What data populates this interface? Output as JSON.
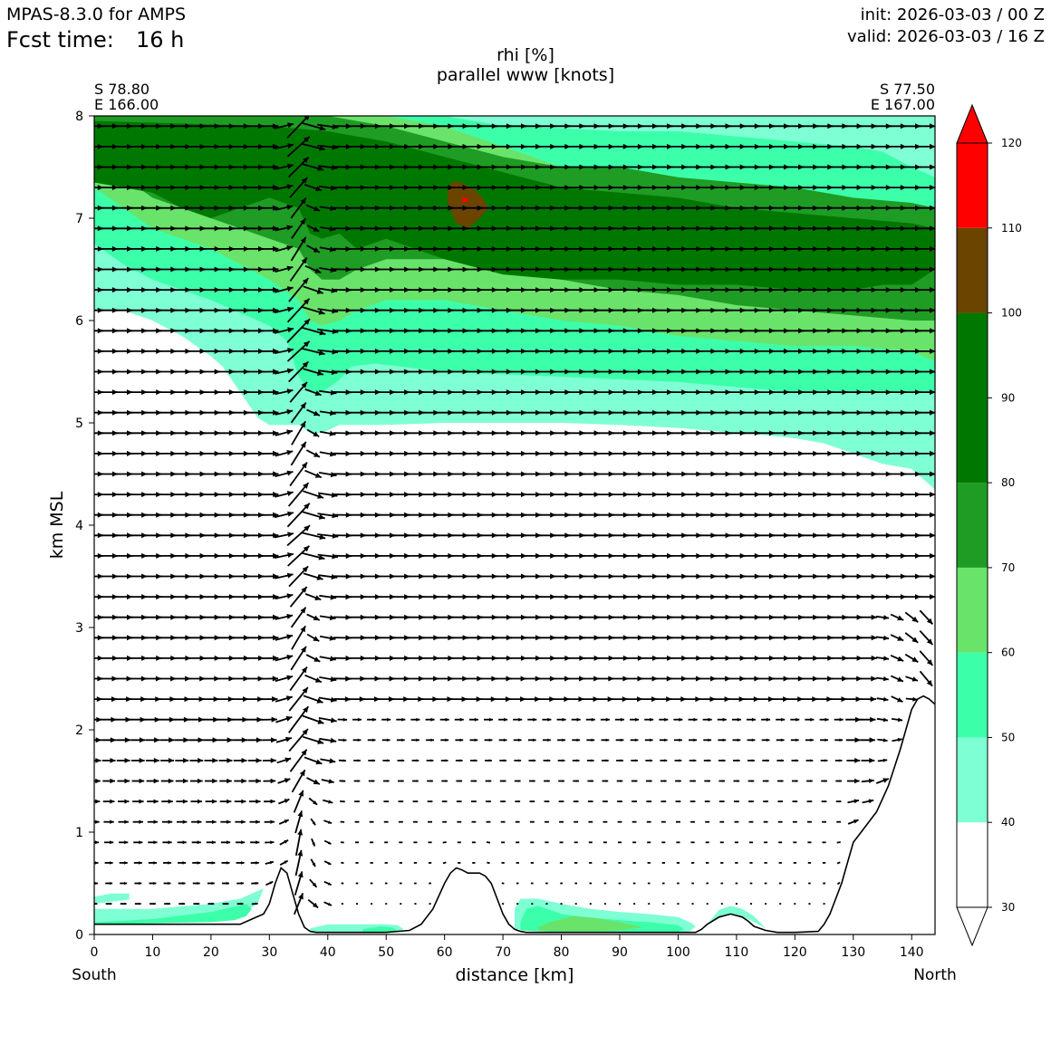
{
  "header": {
    "model": "MPAS-8.3.0 for AMPS",
    "fcst_label": "Fcst time:",
    "fcst_value": "16 h",
    "init": "init: 2026-03-03 / 00 Z",
    "valid": "valid: 2026-03-03 / 16 Z"
  },
  "chart_data": {
    "type": "cross-section",
    "title_line1": "rhi [%]",
    "title_line2": "parallel www [knots]",
    "xlabel": "distance [km]",
    "ylabel": "km MSL",
    "xlim": [
      0,
      144
    ],
    "ylim": [
      0,
      8
    ],
    "xticks": [
      0,
      10,
      20,
      30,
      40,
      50,
      60,
      70,
      80,
      90,
      100,
      110,
      120,
      130,
      140
    ],
    "yticks": [
      0,
      1,
      2,
      3,
      4,
      5,
      6,
      7,
      8
    ],
    "start_point": {
      "lat": "S 78.80",
      "lon": "E 166.00"
    },
    "end_point": {
      "lat": "S 77.50",
      "lon": "E 167.00"
    },
    "left_label": "South",
    "right_label": "North",
    "colorbar": {
      "ticks": [
        30,
        40,
        50,
        60,
        70,
        80,
        90,
        100,
        110,
        120
      ],
      "bins": [
        {
          "from": 30,
          "to": 40,
          "color": "#ffffff"
        },
        {
          "from": 40,
          "to": 50,
          "color": "#7fffd4"
        },
        {
          "from": 50,
          "to": 60,
          "color": "#3cffaa"
        },
        {
          "from": 60,
          "to": 70,
          "color": "#6ae36a"
        },
        {
          "from": 70,
          "to": 80,
          "color": "#1f9c24"
        },
        {
          "from": 80,
          "to": 100,
          "color": "#007800"
        },
        {
          "from": 100,
          "to": 110,
          "color": "#6b4400"
        },
        {
          "from": 110,
          "to": 120,
          "color": "#ff0000"
        }
      ]
    },
    "terrain": {
      "x": [
        0,
        10,
        20,
        25,
        27,
        29,
        30,
        31,
        32,
        33,
        34,
        35,
        36,
        37,
        38,
        40,
        45,
        50,
        54,
        56,
        58,
        60,
        61,
        62,
        63,
        64,
        66,
        67,
        68,
        69,
        70,
        71,
        72,
        73,
        74,
        80,
        90,
        100,
        103,
        104,
        105,
        107,
        109,
        111,
        112,
        113,
        115,
        117,
        120,
        124,
        125,
        126,
        128,
        130,
        132,
        134,
        136,
        138,
        139,
        140,
        141,
        142,
        143,
        144
      ],
      "y": [
        0.1,
        0.1,
        0.1,
        0.1,
        0.15,
        0.2,
        0.3,
        0.5,
        0.65,
        0.6,
        0.4,
        0.2,
        0.07,
        0.03,
        0.02,
        0.02,
        0.02,
        0.02,
        0.04,
        0.1,
        0.25,
        0.5,
        0.6,
        0.65,
        0.63,
        0.6,
        0.6,
        0.57,
        0.5,
        0.35,
        0.2,
        0.1,
        0.05,
        0.03,
        0.02,
        0.02,
        0.02,
        0.02,
        0.02,
        0.05,
        0.1,
        0.17,
        0.2,
        0.17,
        0.13,
        0.08,
        0.04,
        0.02,
        0.02,
        0.03,
        0.1,
        0.2,
        0.5,
        0.9,
        1.05,
        1.2,
        1.45,
        1.8,
        2.0,
        2.2,
        2.3,
        2.33,
        2.3,
        2.25
      ]
    },
    "rhi_layers": [
      {
        "level": "40-50",
        "color": "#7fffd4",
        "upper": {
          "x": [
            0,
            144
          ],
          "y": [
            8,
            8
          ]
        },
        "lower": {
          "x": [
            0,
            2,
            5,
            10,
            15,
            20,
            22,
            25,
            28,
            30,
            35,
            37,
            39,
            42,
            45,
            50,
            60,
            70,
            80,
            90,
            100,
            110,
            115,
            120,
            125,
            130,
            135,
            140,
            144
          ],
          "y": [
            6.1,
            6.1,
            6.1,
            6.0,
            5.85,
            5.65,
            5.55,
            5.3,
            5.05,
            4.98,
            4.98,
            4.9,
            4.9,
            4.98,
            4.98,
            4.98,
            5.0,
            5.0,
            5.0,
            4.98,
            4.95,
            4.9,
            4.88,
            4.85,
            4.8,
            4.7,
            4.6,
            4.55,
            4.35
          ]
        }
      },
      {
        "level": "50-60",
        "color": "#3cffaa",
        "upper": {
          "x": [
            0,
            50,
            60,
            70,
            80,
            90,
            100,
            110,
            120,
            130,
            135,
            140,
            144
          ],
          "y": [
            8,
            8,
            8,
            7.9,
            7.88,
            7.85,
            7.85,
            7.8,
            7.75,
            7.7,
            7.65,
            7.5,
            7.4
          ]
        },
        "lower": {
          "x": [
            0,
            5,
            10,
            20,
            30,
            33,
            35,
            37,
            39,
            42,
            44,
            48,
            60,
            80,
            100,
            120,
            140,
            144
          ],
          "y": [
            6.75,
            6.55,
            6.4,
            6.2,
            5.95,
            5.8,
            5.45,
            5.3,
            5.3,
            5.42,
            5.55,
            5.58,
            5.5,
            5.45,
            5.4,
            5.3,
            5.3,
            5.3
          ]
        }
      },
      {
        "level": "60-70",
        "color": "#6ae36a",
        "upper": {
          "x": [
            0,
            30,
            40,
            50,
            60,
            70,
            80,
            90,
            100,
            110,
            120,
            130,
            140,
            144
          ],
          "y": [
            8,
            8,
            8,
            8,
            7.9,
            7.7,
            7.5,
            7.4,
            7.35,
            7.3,
            7.25,
            7.2,
            7.1,
            7.05
          ]
        },
        "lower": {
          "x": [
            0,
            5,
            10,
            20,
            30,
            35,
            37,
            39,
            42,
            45,
            50,
            60,
            70,
            80,
            90,
            100,
            110,
            120,
            130,
            140,
            144
          ],
          "y": [
            7.3,
            7.1,
            6.9,
            6.7,
            6.4,
            6.2,
            6.0,
            5.95,
            6.0,
            6.1,
            6.2,
            6.2,
            6.1,
            6.0,
            5.95,
            5.85,
            5.8,
            5.75,
            5.75,
            5.7,
            5.6
          ]
        }
      },
      {
        "level": "70-80",
        "color": "#1f9c24",
        "upper": {
          "x": [
            0,
            30,
            40,
            50,
            60,
            70,
            80,
            90,
            100,
            110,
            120,
            130,
            140,
            144
          ],
          "y": [
            8,
            8,
            8,
            7.9,
            7.75,
            7.6,
            7.5,
            7.5,
            7.4,
            7.35,
            7.3,
            7.2,
            7.15,
            7.1
          ]
        },
        "lower": {
          "x": [
            0,
            5,
            10,
            20,
            30,
            35,
            37,
            39,
            42,
            45,
            50,
            60,
            70,
            80,
            90,
            100,
            110,
            120,
            130,
            140,
            144
          ],
          "y": [
            7.6,
            7.4,
            7.2,
            7.0,
            6.8,
            6.7,
            6.5,
            6.4,
            6.4,
            6.5,
            6.6,
            6.6,
            6.5,
            6.4,
            6.3,
            6.25,
            6.15,
            6.1,
            6.05,
            6.0,
            6.0
          ]
        }
      },
      {
        "level": "80-100",
        "color": "#007800",
        "upper": {
          "x": [
            0,
            30,
            40,
            50,
            60,
            70,
            80,
            90,
            100,
            110,
            120,
            130,
            140,
            144
          ],
          "y": [
            7.95,
            7.9,
            7.85,
            7.75,
            7.6,
            7.45,
            7.3,
            7.25,
            7.2,
            7.1,
            7.05,
            7.0,
            6.95,
            6.9
          ]
        },
        "lower": {
          "x": [
            0,
            5,
            10,
            15,
            20,
            25,
            30,
            35,
            37,
            39,
            42,
            45,
            50,
            55,
            60,
            70,
            80,
            90,
            100,
            110,
            120,
            130,
            135,
            140,
            144
          ],
          "y": [
            7.35,
            7.3,
            7.25,
            7.1,
            7.0,
            7.1,
            7.2,
            7.1,
            6.85,
            6.8,
            6.85,
            6.7,
            6.8,
            6.7,
            6.6,
            6.45,
            6.4,
            6.4,
            6.35,
            6.35,
            6.3,
            6.3,
            6.35,
            6.35,
            6.5
          ]
        }
      }
    ],
    "rhi_patches": [
      {
        "level": "100-110",
        "color": "#6b4400",
        "x": [
          60.5,
          61.5,
          63,
          65,
          66.5,
          67.5,
          66,
          64,
          62,
          60.5
        ],
        "y": [
          7.3,
          7.36,
          7.35,
          7.28,
          7.2,
          7.1,
          7.0,
          6.9,
          6.95,
          7.15
        ]
      },
      {
        "level": "110-120",
        "color": "#ff0000",
        "x": [
          63,
          64,
          64,
          63
        ],
        "y": [
          7.2,
          7.2,
          7.16,
          7.16
        ]
      },
      {
        "level": "40-50",
        "color": "#7fffd4",
        "x": [
          0,
          5,
          10,
          20,
          25,
          28,
          29,
          27,
          25,
          20,
          10,
          5,
          0
        ],
        "y": [
          0.1,
          0.1,
          0.12,
          0.15,
          0.2,
          0.3,
          0.45,
          0.4,
          0.35,
          0.3,
          0.25,
          0.25,
          0.25
        ]
      },
      {
        "level": "50-60",
        "color": "#3cffaa",
        "x": [
          0,
          10,
          20,
          24,
          26,
          27,
          26,
          24,
          20,
          10,
          0
        ],
        "y": [
          0.1,
          0.11,
          0.12,
          0.14,
          0.18,
          0.25,
          0.3,
          0.27,
          0.22,
          0.15,
          0.12
        ]
      },
      {
        "level": "40-50",
        "color": "#7fffd4",
        "x": [
          37,
          45,
          50,
          52,
          53,
          52,
          50,
          45,
          40,
          37
        ],
        "y": [
          0.02,
          0.02,
          0.03,
          0.03,
          0.05,
          0.09,
          0.1,
          0.1,
          0.1,
          0.06
        ]
      },
      {
        "level": "50-60",
        "color": "#3cffaa",
        "x": [
          46,
          50,
          52,
          51,
          49,
          46
        ],
        "y": [
          0.02,
          0.02,
          0.04,
          0.07,
          0.08,
          0.05
        ]
      },
      {
        "level": "40-50",
        "color": "#7fffd4",
        "x": [
          72,
          80,
          90,
          100,
          102,
          103,
          102,
          100,
          95,
          90,
          85,
          80,
          76,
          73,
          72
        ],
        "y": [
          0.05,
          0.02,
          0.02,
          0.02,
          0.03,
          0.08,
          0.12,
          0.17,
          0.2,
          0.22,
          0.25,
          0.3,
          0.35,
          0.35,
          0.25
        ]
      },
      {
        "level": "50-60",
        "color": "#3cffaa",
        "x": [
          73,
          80,
          90,
          100,
          101,
          100,
          95,
          90,
          84,
          80,
          76,
          74,
          73
        ],
        "y": [
          0.04,
          0.02,
          0.02,
          0.02,
          0.05,
          0.09,
          0.12,
          0.14,
          0.17,
          0.2,
          0.28,
          0.25,
          0.12
        ]
      },
      {
        "level": "60-70",
        "color": "#6ae36a",
        "x": [
          76,
          80,
          86,
          90,
          94,
          90,
          86,
          82,
          78,
          76
        ],
        "y": [
          0.04,
          0.03,
          0.03,
          0.04,
          0.07,
          0.12,
          0.16,
          0.18,
          0.12,
          0.07
        ]
      },
      {
        "level": "40-50",
        "color": "#7fffd4",
        "x": [
          105,
          107,
          109,
          111,
          113,
          115,
          113,
          111,
          109,
          107
        ],
        "y": [
          0.1,
          0.17,
          0.2,
          0.18,
          0.12,
          0.06,
          0.18,
          0.25,
          0.28,
          0.24
        ]
      },
      {
        "level": "40-50",
        "color": "#7fffd4",
        "x": [
          0,
          3,
          6,
          6,
          3,
          0
        ],
        "y": [
          0.3,
          0.32,
          0.34,
          0.4,
          0.4,
          0.37
        ]
      }
    ],
    "wind_grid": {
      "x_start": 0,
      "x_step": 2.5,
      "x_count": 58,
      "y_start": 0.3,
      "y_step": 0.2,
      "y_count": 39,
      "units": "knots"
    },
    "wind_features": [
      {
        "name": "updraft-ridge",
        "x": 33,
        "z_from": 0.6,
        "z_to": 2.3,
        "u": 0,
        "w": 40
      },
      {
        "name": "wave-column",
        "x": 40,
        "z_from": 2.3,
        "z_to": 6.8,
        "u": 8,
        "w": 30
      },
      {
        "name": "downslope-north",
        "x": 140,
        "z_from": 2.0,
        "z_to": 3.0,
        "u": 10,
        "w": -25
      }
    ]
  }
}
